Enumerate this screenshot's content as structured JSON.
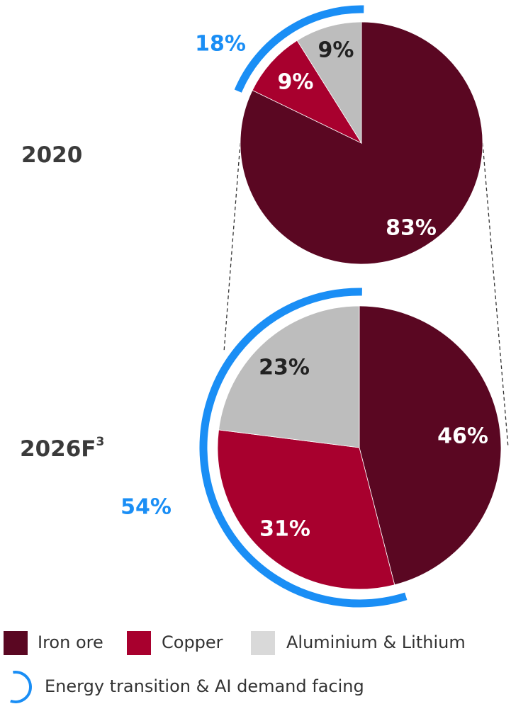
{
  "colors": {
    "iron_ore": "#5a0722",
    "copper": "#a8002e",
    "aluminium_lithium": "#bdbdbd",
    "accent": "#1a8ef5",
    "label_light": "#ffffff",
    "label_dark": "#222222"
  },
  "legend": {
    "iron_ore": "Iron ore",
    "copper": "Copper",
    "aluminium_lithium": "Aluminium & Lithium",
    "energy_transition": "Energy transition & AI demand facing"
  },
  "chart_data": [
    {
      "type": "pie",
      "title": "2020",
      "categories": [
        "Iron ore",
        "Copper",
        "Aluminium & Lithium"
      ],
      "values": [
        83,
        9,
        9
      ],
      "value_labels": [
        "83%",
        "9%",
        "9%"
      ],
      "energy_transition_share": "18%"
    },
    {
      "type": "pie",
      "title": "2026F",
      "title_superscript": "3",
      "categories": [
        "Iron ore",
        "Copper",
        "Aluminium & Lithium"
      ],
      "values": [
        46,
        31,
        23
      ],
      "value_labels": [
        "46%",
        "31%",
        "23%"
      ],
      "energy_transition_share": "54%"
    }
  ]
}
